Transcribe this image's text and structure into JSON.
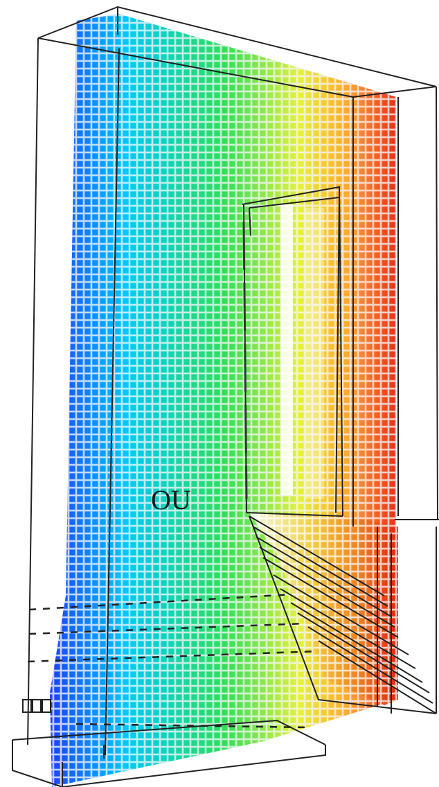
{
  "figure": {
    "label": "OU",
    "colormap": [
      "#1e3cff",
      "#00c8ff",
      "#2be05a",
      "#e6f03c",
      "#ffa531",
      "#f0271c"
    ]
  }
}
